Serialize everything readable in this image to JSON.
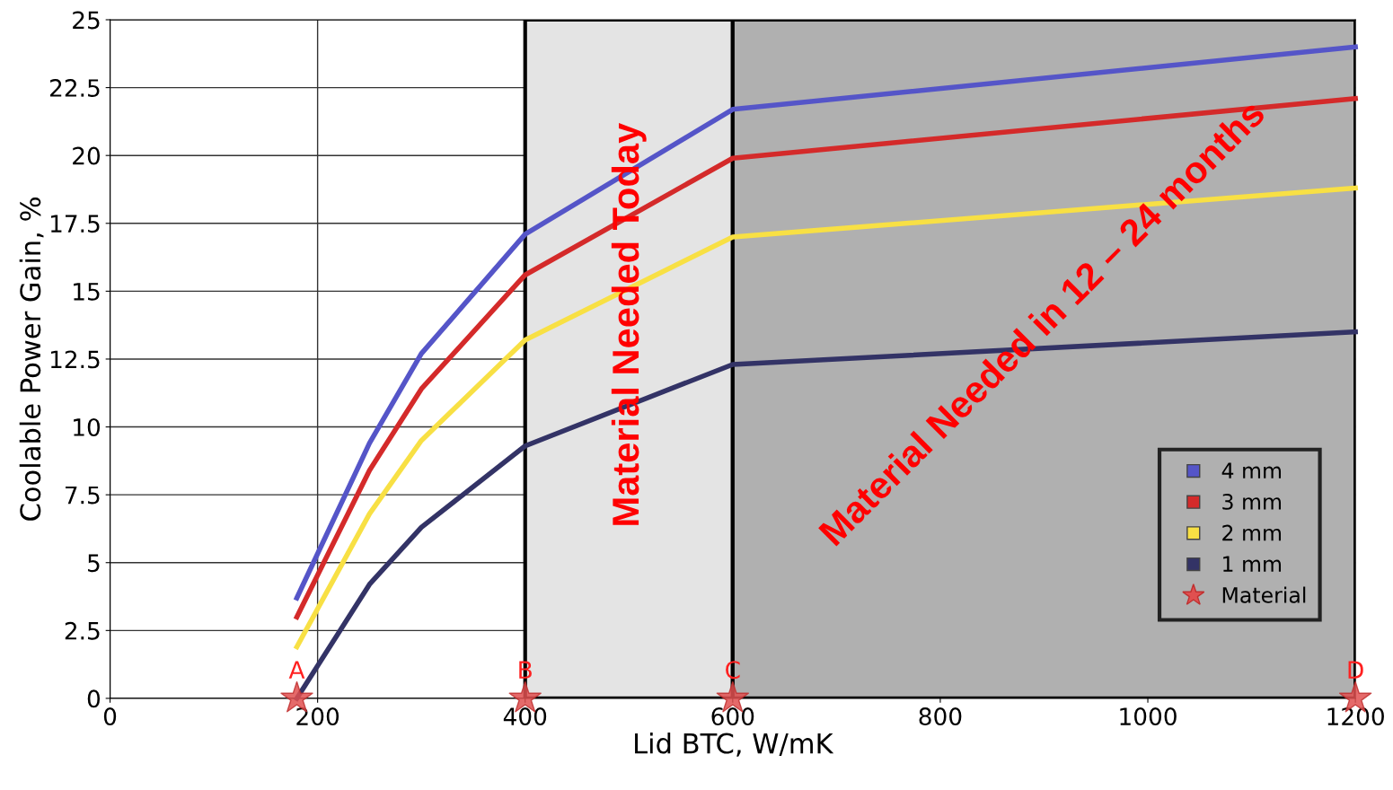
{
  "chart_data": {
    "type": "line",
    "xlabel": "Lid BTC, W/mK",
    "ylabel": "Coolable Power Gain, %",
    "xlim": [
      0,
      1200
    ],
    "xticks": [
      0,
      200,
      400,
      600,
      800,
      1000,
      1200
    ],
    "ylim": [
      0,
      25
    ],
    "yticks": [
      0,
      2.5,
      5,
      7.5,
      10,
      12.5,
      15,
      17.5,
      20,
      22.5,
      25
    ],
    "grid": true,
    "legend": "bottom right",
    "marker": "none",
    "line_style": "solid",
    "series": [
      {
        "name": "4 mm",
        "color": "#5555c8",
        "x": [
          180,
          250,
          300,
          400,
          600,
          1200
        ],
        "values": [
          3.7,
          9.4,
          12.7,
          17.1,
          21.7,
          24.0
        ]
      },
      {
        "name": "3 mm",
        "color": "#d42a2a",
        "x": [
          180,
          250,
          300,
          400,
          600,
          1200
        ],
        "values": [
          3.0,
          8.4,
          11.4,
          15.6,
          19.9,
          22.1
        ]
      },
      {
        "name": "2 mm",
        "color": "#f8e044",
        "x": [
          180,
          250,
          300,
          400,
          600,
          1200
        ],
        "values": [
          1.9,
          6.8,
          9.5,
          13.2,
          17.0,
          18.8
        ]
      },
      {
        "name": "1 mm",
        "color": "#333366",
        "x": [
          180,
          250,
          300,
          400,
          600,
          1200
        ],
        "values": [
          0,
          4.2,
          6.3,
          9.3,
          12.3,
          13.5
        ]
      },
      {
        "name": "Material",
        "type": "scatter",
        "marker": "star",
        "color": "#e05050",
        "x": [
          180,
          400,
          600,
          1200
        ],
        "values": [
          0,
          0,
          0,
          0
        ]
      }
    ],
    "bands": [
      {
        "axis": "x",
        "from": 400,
        "to": 600,
        "label": "Material Needed Today",
        "color": "#e4e4e4"
      },
      {
        "axis": "x",
        "from": 600,
        "to": 1200,
        "label": "Material Needed in 12 – 24 months",
        "color": "#b0b0b0"
      }
    ],
    "annotations": [
      {
        "text": "A",
        "x": 180,
        "y": 0
      },
      {
        "text": "B",
        "x": 400,
        "y": 0
      },
      {
        "text": "C",
        "x": 600,
        "y": 0
      },
      {
        "text": "D",
        "x": 1200,
        "y": 0
      }
    ]
  }
}
